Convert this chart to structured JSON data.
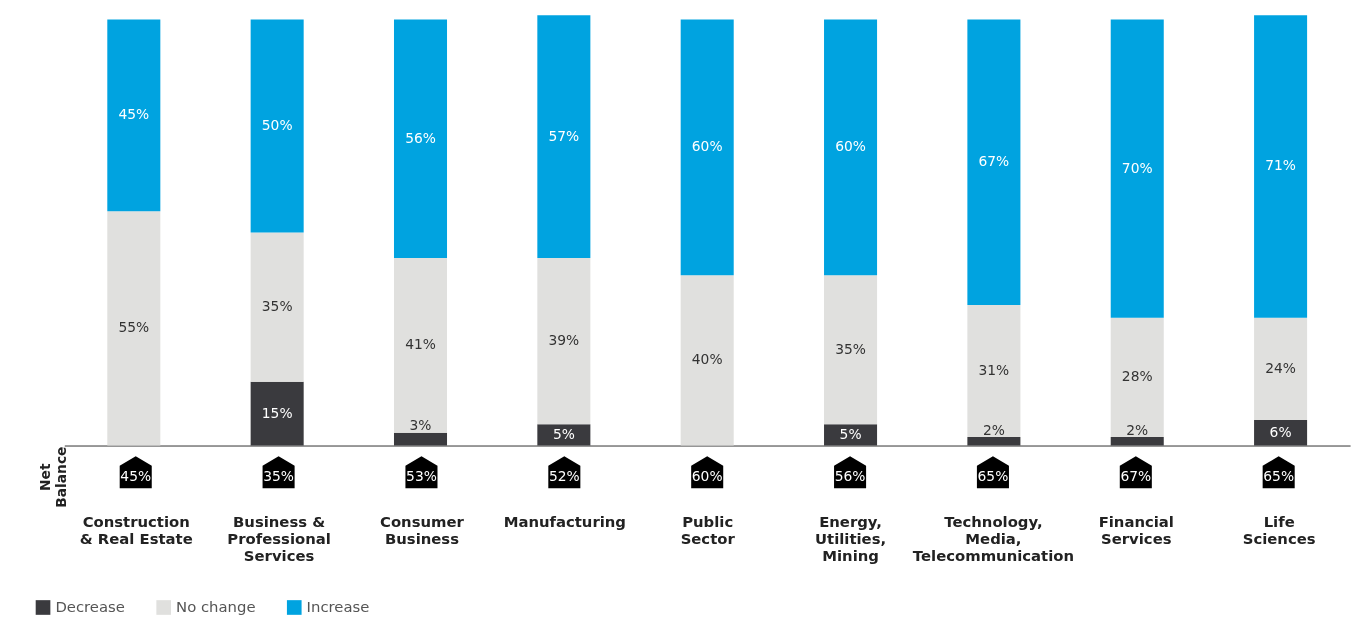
{
  "chart_data": {
    "type": "bar",
    "stacked": true,
    "legend": "bottom left",
    "categories": [
      "Construction\n& Real Estate",
      "Business &\nProfessional\nServices",
      "Consumer\nBusiness",
      "Manufacturing",
      "Public\nSector",
      "Energy,\nUtilities,\nMining",
      "Technology,\nMedia,\nTelecommunication",
      "Financial\nServices",
      "Life\nSciences"
    ],
    "series": [
      {
        "name": "Decrease",
        "color": "#3a3a3e",
        "values": [
          null,
          15,
          3,
          5,
          null,
          5,
          2,
          2,
          6
        ],
        "value_labels": [
          null,
          "15%",
          "3%",
          "5%",
          null,
          "5%",
          "2%",
          "2%",
          "6%"
        ]
      },
      {
        "name": "No change",
        "color": "#e0e0de",
        "values": [
          55,
          35,
          41,
          39,
          40,
          35,
          31,
          28,
          24
        ],
        "value_labels": [
          "55%",
          "35%",
          "41%",
          "39%",
          "40%",
          "35%",
          "31%",
          "28%",
          "24%"
        ]
      },
      {
        "name": "Increase",
        "color": "#00a3e0",
        "values": [
          45,
          50,
          56,
          57,
          60,
          60,
          67,
          70,
          71
        ],
        "value_labels": [
          "45%",
          "50%",
          "56%",
          "57%",
          "60%",
          "60%",
          "67%",
          "70%",
          "71%"
        ]
      }
    ],
    "annotations": [
      "Net\nBalance",
      "45%",
      "35%",
      "53%",
      "52%",
      "60%",
      "56%",
      "65%",
      "67%",
      "65%"
    ]
  }
}
